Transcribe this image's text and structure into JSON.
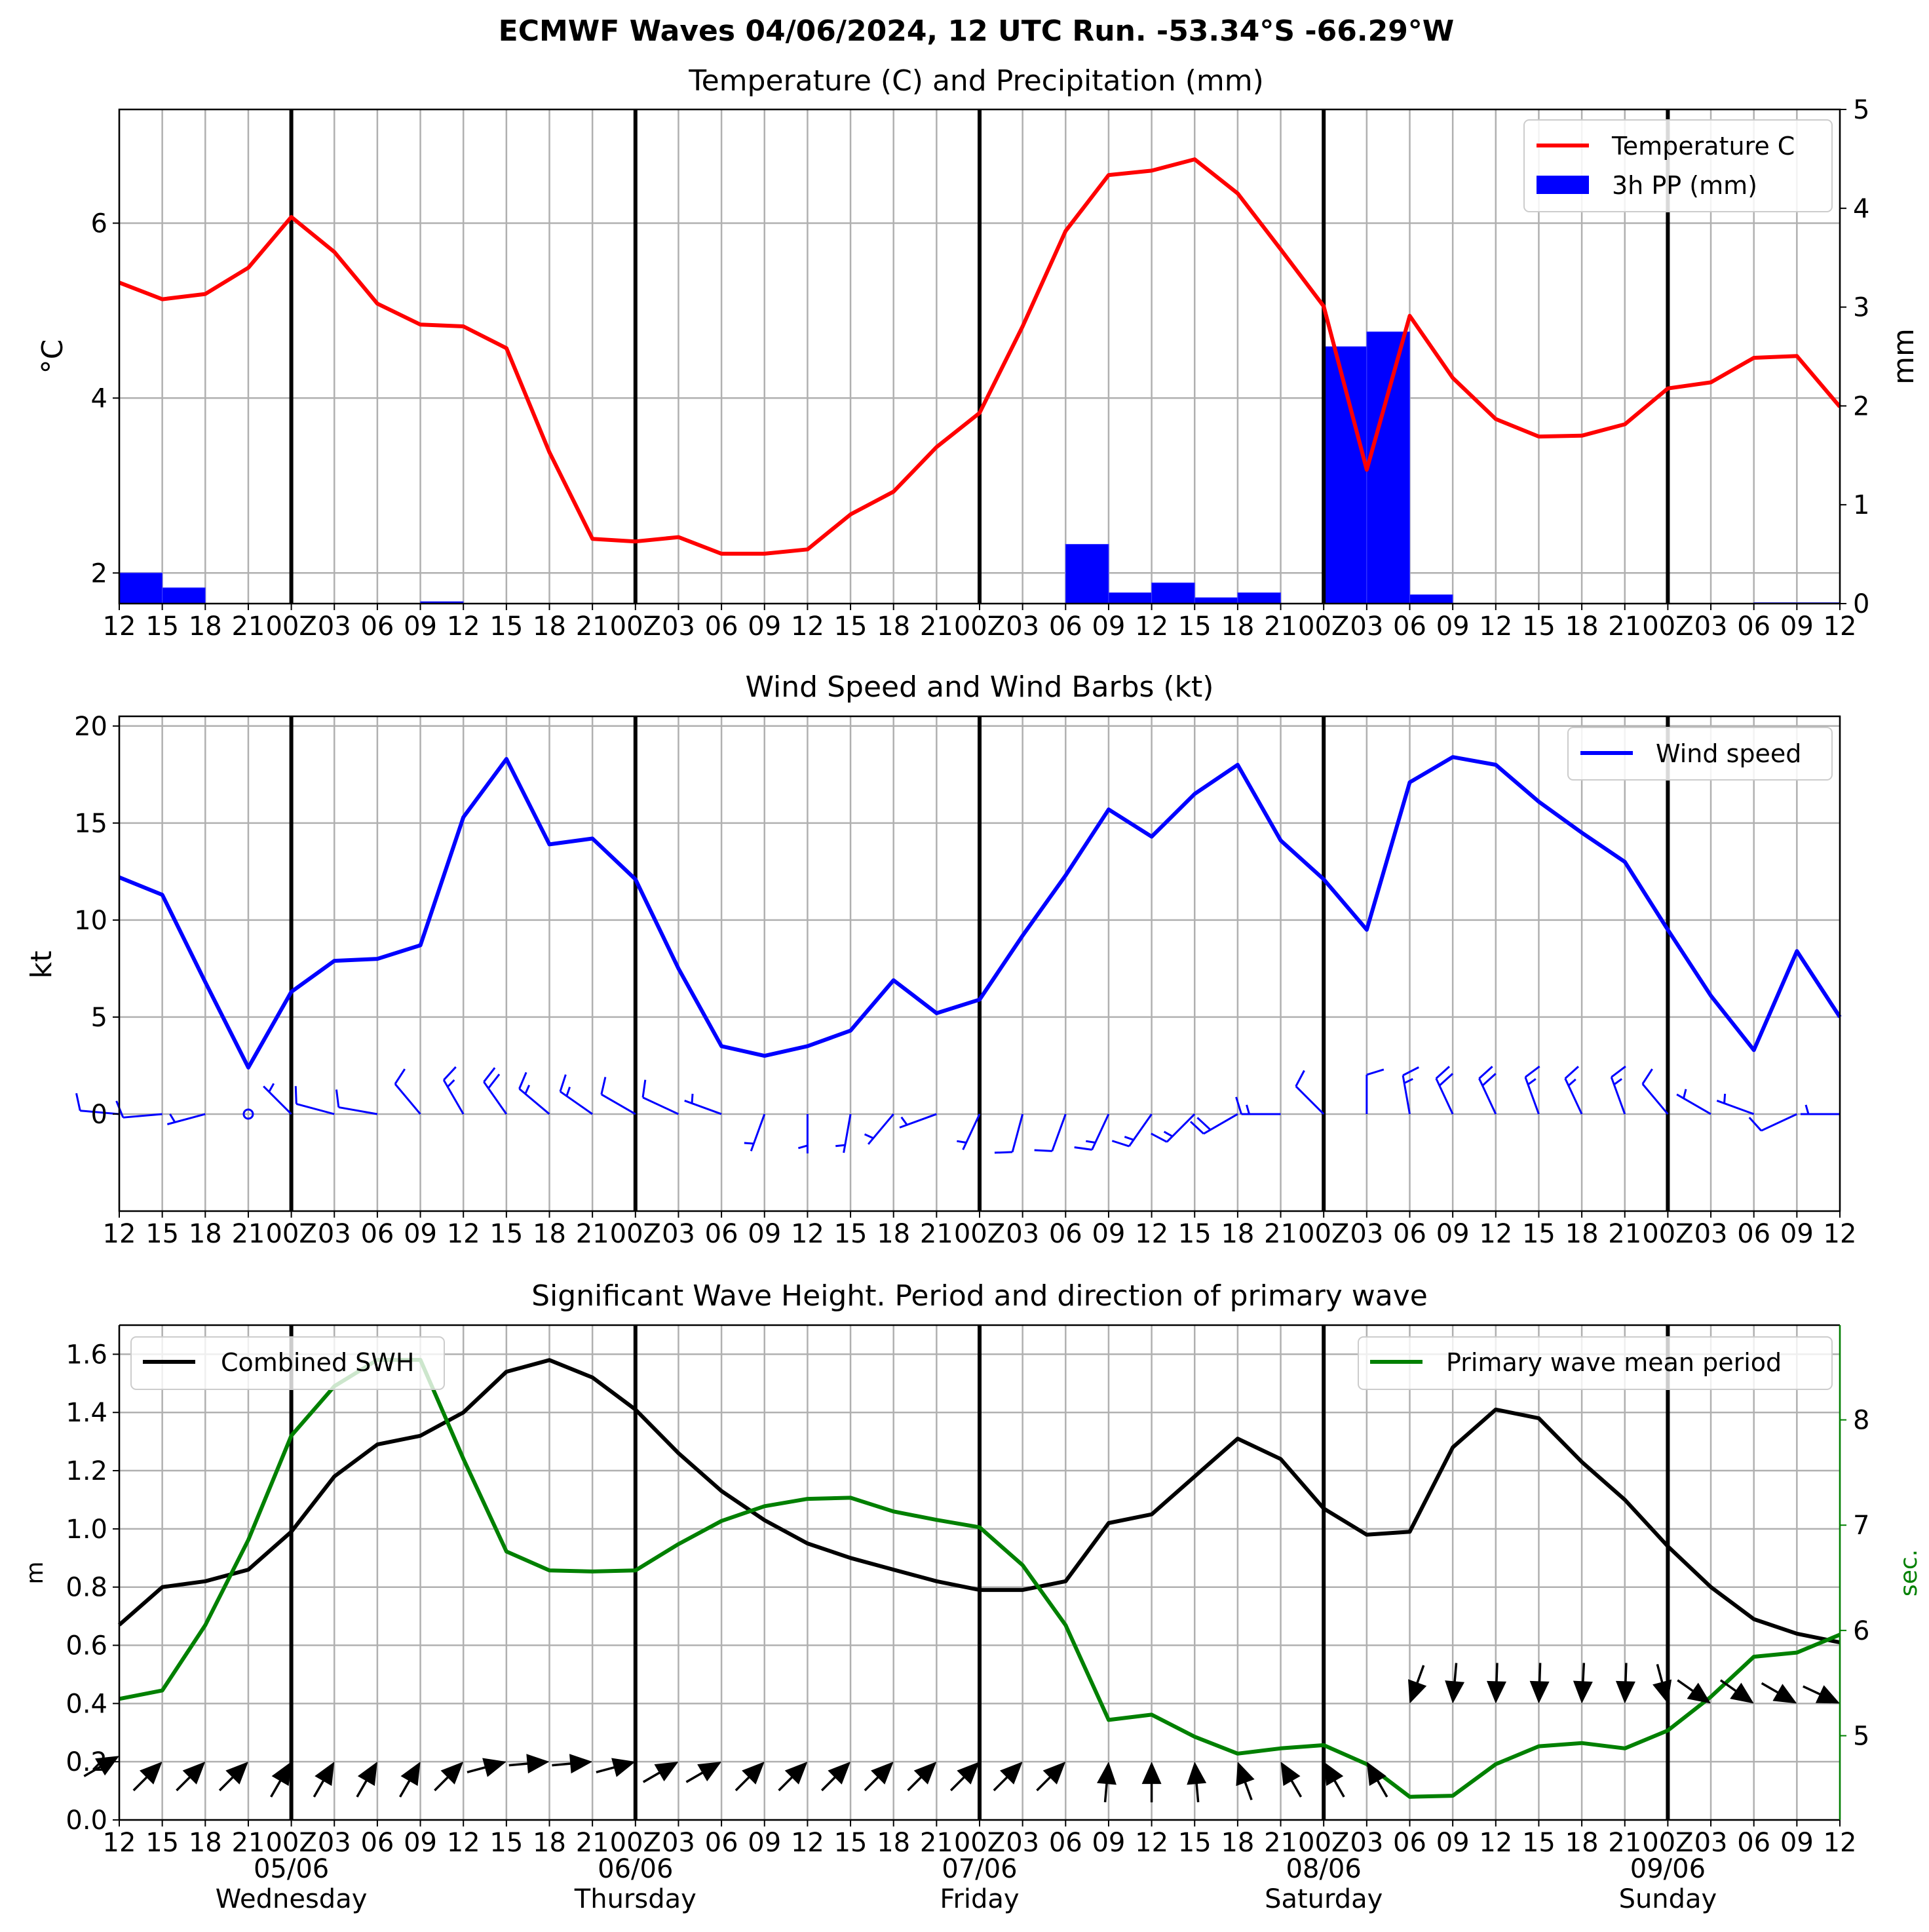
{
  "title": "ECMWF Waves 04/06/2024, 12 UTC Run. -53.34°S -66.29°W",
  "x_tick_labels": [
    "12",
    "15",
    "18",
    "21",
    "00Z",
    "03",
    "06",
    "09",
    "12",
    "15",
    "18",
    "21",
    "00Z",
    "03",
    "06",
    "09",
    "12",
    "15",
    "18",
    "21",
    "00Z",
    "03",
    "06",
    "09",
    "12",
    "15",
    "18",
    "21",
    "00Z",
    "03",
    "06",
    "09",
    "12",
    "15",
    "18",
    "21",
    "00Z",
    "03",
    "06",
    "09",
    "12"
  ],
  "day_labels": [
    {
      "date": "05/06",
      "day": "Wednesday"
    },
    {
      "date": "06/06",
      "day": "Thursday"
    },
    {
      "date": "07/06",
      "day": "Friday"
    },
    {
      "date": "08/06",
      "day": "Saturday"
    },
    {
      "date": "09/06",
      "day": "Sunday"
    }
  ],
  "colors": {
    "temperature": "#ff0000",
    "precip": "#0000ff",
    "wind": "#0000ff",
    "swh": "#000000",
    "period": "#008000",
    "grid": "#b0b0b0"
  },
  "chart_data": [
    {
      "type": "line",
      "title": "Temperature (C) and Precipitation (mm)",
      "ylabel": "°C",
      "ylabel_right": "mm",
      "ylim": [
        1.65,
        7.3
      ],
      "ylim_right": [
        0,
        5
      ],
      "yticks": [
        2,
        4,
        6
      ],
      "yticks_right": [
        0,
        1,
        2,
        3,
        4,
        5
      ],
      "grid": true,
      "legend_position": "top-right",
      "series": [
        {
          "name": "Temperature C",
          "axis": "left",
          "kind": "line",
          "values": [
            5.32,
            5.13,
            5.19,
            5.49,
            6.07,
            5.67,
            5.08,
            4.84,
            4.82,
            4.57,
            3.38,
            2.39,
            2.36,
            2.41,
            2.22,
            2.22,
            2.27,
            2.67,
            2.93,
            3.44,
            3.83,
            4.82,
            5.91,
            6.55,
            6.6,
            6.73,
            6.34,
            5.7,
            5.05,
            3.18,
            4.94,
            4.23,
            3.76,
            3.56,
            3.57,
            3.7,
            4.11,
            4.18,
            4.46,
            4.48,
            3.9
          ]
        },
        {
          "name": "3h PP (mm)",
          "axis": "right",
          "kind": "bar",
          "values": [
            0.31,
            0.16,
            0,
            0,
            0,
            0,
            0,
            0.02,
            0,
            0,
            0,
            0,
            0,
            0,
            0,
            0,
            0,
            0,
            0,
            0,
            0,
            0,
            0.6,
            0.11,
            0.21,
            0.06,
            0.11,
            0,
            2.6,
            2.75,
            0.09,
            0,
            0,
            0,
            0,
            0,
            0,
            0,
            0.01,
            0.01,
            0
          ]
        }
      ]
    },
    {
      "type": "line",
      "title": "Wind Speed and Wind Barbs (kt)",
      "ylabel": "kt",
      "ylim": [
        -5,
        20.5
      ],
      "yticks": [
        0,
        5,
        10,
        15,
        20
      ],
      "grid": true,
      "legend_position": "top-right",
      "series": [
        {
          "name": "Wind speed",
          "values": [
            12.2,
            11.3,
            6.8,
            2.4,
            6.3,
            7.9,
            8.0,
            8.7,
            15.3,
            18.3,
            13.9,
            14.2,
            12.1,
            7.5,
            3.5,
            3.0,
            3.5,
            4.3,
            6.9,
            5.2,
            5.9,
            9.2,
            12.3,
            15.7,
            14.3,
            16.5,
            18.0,
            14.1,
            12.1,
            9.5,
            17.1,
            18.4,
            18.0,
            16.1,
            14.5,
            13.0,
            9.5,
            6.1,
            3.3,
            8.4,
            5.0
          ]
        }
      ],
      "barbs": [
        {
          "speed": 12.2,
          "dir": 275
        },
        {
          "speed": 11.3,
          "dir": 265
        },
        {
          "speed": 6.8,
          "dir": 255
        },
        {
          "speed": 2.4,
          "dir": 0
        },
        {
          "speed": 6.3,
          "dir": 315
        },
        {
          "speed": 7.9,
          "dir": 285
        },
        {
          "speed": 8.0,
          "dir": 280
        },
        {
          "speed": 8.7,
          "dir": 320
        },
        {
          "speed": 15.3,
          "dir": 330
        },
        {
          "speed": 18.3,
          "dir": 325
        },
        {
          "speed": 13.9,
          "dir": 310
        },
        {
          "speed": 14.2,
          "dir": 305
        },
        {
          "speed": 12.1,
          "dir": 300
        },
        {
          "speed": 7.5,
          "dir": 295
        },
        {
          "speed": 3.5,
          "dir": 290
        },
        {
          "speed": 3.0,
          "dir": 200
        },
        {
          "speed": 3.5,
          "dir": 180
        },
        {
          "speed": 4.3,
          "dir": 190
        },
        {
          "speed": 6.9,
          "dir": 220
        },
        {
          "speed": 5.2,
          "dir": 250
        },
        {
          "speed": 5.9,
          "dir": 205
        },
        {
          "speed": 9.2,
          "dir": 195
        },
        {
          "speed": 12.3,
          "dir": 200
        },
        {
          "speed": 15.7,
          "dir": 205
        },
        {
          "speed": 14.3,
          "dir": 215
        },
        {
          "speed": 16.5,
          "dir": 225
        },
        {
          "speed": 18.0,
          "dir": 240
        },
        {
          "speed": 14.1,
          "dir": 270
        },
        {
          "speed": 12.1,
          "dir": 315
        },
        {
          "speed": 9.5,
          "dir": 0
        },
        {
          "speed": 17.1,
          "dir": 350
        },
        {
          "speed": 18.4,
          "dir": 335
        },
        {
          "speed": 18.0,
          "dir": 335
        },
        {
          "speed": 16.1,
          "dir": 340
        },
        {
          "speed": 14.5,
          "dir": 335
        },
        {
          "speed": 13.0,
          "dir": 340
        },
        {
          "speed": 9.5,
          "dir": 320
        },
        {
          "speed": 6.1,
          "dir": 300
        },
        {
          "speed": 3.3,
          "dir": 290
        },
        {
          "speed": 8.4,
          "dir": 245
        },
        {
          "speed": 5.0,
          "dir": 270
        }
      ]
    },
    {
      "type": "line",
      "title": "Significant Wave Height. Period and direction of primary wave",
      "ylabel": "m",
      "ylabel_right": "sec.",
      "ylim": [
        0,
        1.7
      ],
      "ylim_right": [
        4.2,
        8.9
      ],
      "yticks": [
        0.0,
        0.2,
        0.4,
        0.6,
        0.8,
        1.0,
        1.2,
        1.4,
        1.6
      ],
      "yticks_right": [
        5,
        6,
        7,
        8
      ],
      "grid": true,
      "series": [
        {
          "name": "Combined SWH",
          "axis": "left",
          "legend_position": "top-left",
          "values": [
            0.67,
            0.8,
            0.82,
            0.86,
            0.99,
            1.18,
            1.29,
            1.32,
            1.4,
            1.54,
            1.58,
            1.52,
            1.41,
            1.26,
            1.13,
            1.03,
            0.95,
            0.9,
            0.86,
            0.82,
            0.79,
            0.79,
            0.82,
            1.02,
            1.05,
            1.18,
            1.31,
            1.24,
            1.07,
            0.98,
            0.99,
            1.28,
            1.41,
            1.38,
            1.23,
            1.1,
            0.94,
            0.8,
            0.69,
            0.64,
            0.61
          ]
        },
        {
          "name": "Primary wave mean period",
          "axis": "right",
          "legend_position": "top-right",
          "values": [
            5.35,
            5.43,
            6.05,
            6.86,
            7.85,
            8.32,
            8.57,
            8.57,
            7.63,
            6.75,
            6.57,
            6.56,
            6.57,
            6.82,
            7.04,
            7.18,
            7.25,
            7.26,
            7.13,
            7.05,
            6.98,
            6.62,
            6.05,
            5.15,
            5.2,
            4.99,
            4.83,
            4.88,
            4.91,
            4.73,
            4.42,
            4.43,
            4.73,
            4.9,
            4.93,
            4.88,
            5.05,
            5.37,
            5.75,
            5.79,
            5.96
          ]
        }
      ],
      "wave_arrows": {
        "y_values": [
          0.22,
          0.2,
          0.2,
          0.2,
          0.2,
          0.2,
          0.2,
          0.2,
          0.2,
          0.2,
          0.2,
          0.2,
          0.2,
          0.2,
          0.2,
          0.2,
          0.2,
          0.2,
          0.2,
          0.2,
          0.2,
          0.2,
          0.2,
          0.2,
          0.2,
          0.2,
          0.2,
          0.2,
          0.2,
          0.2,
          0.4,
          0.4,
          0.4,
          0.4,
          0.4,
          0.4,
          0.4,
          0.4,
          0.4,
          0.4,
          0.4
        ],
        "direction_deg": [
          240,
          225,
          225,
          225,
          210,
          210,
          210,
          210,
          225,
          255,
          265,
          265,
          255,
          240,
          240,
          225,
          225,
          225,
          225,
          225,
          225,
          225,
          225,
          185,
          180,
          175,
          160,
          150,
          150,
          150,
          20,
          5,
          2,
          2,
          3,
          2,
          345,
          305,
          305,
          300,
          295
        ]
      }
    }
  ]
}
